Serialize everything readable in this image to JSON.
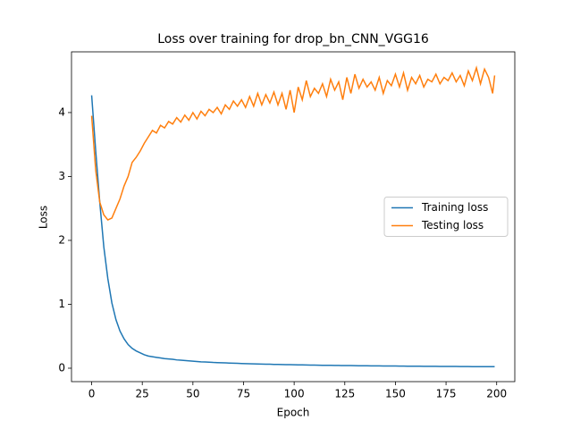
{
  "chart_data": {
    "type": "line",
    "title": "Loss over training for drop_bn_CNN_VGG16",
    "x_label": "Epoch",
    "y_label": "Loss",
    "x": [
      0,
      2,
      4,
      6,
      8,
      10,
      12,
      14,
      16,
      18,
      20,
      22,
      24,
      26,
      28,
      30,
      32,
      34,
      36,
      38,
      40,
      42,
      44,
      46,
      48,
      50,
      52,
      54,
      56,
      58,
      60,
      62,
      64,
      66,
      68,
      70,
      72,
      74,
      76,
      78,
      80,
      82,
      84,
      86,
      88,
      90,
      92,
      94,
      96,
      98,
      100,
      102,
      104,
      106,
      108,
      110,
      112,
      114,
      116,
      118,
      120,
      122,
      124,
      126,
      128,
      130,
      132,
      134,
      136,
      138,
      140,
      142,
      144,
      146,
      148,
      150,
      152,
      154,
      156,
      158,
      160,
      162,
      164,
      166,
      168,
      170,
      172,
      174,
      176,
      178,
      180,
      182,
      184,
      186,
      188,
      190,
      192,
      194,
      196,
      198,
      199
    ],
    "series": [
      {
        "name": "Training loss",
        "color": "#1f77b4",
        "values": [
          4.27,
          3.4,
          2.6,
          1.9,
          1.4,
          1.02,
          0.76,
          0.58,
          0.46,
          0.37,
          0.31,
          0.27,
          0.24,
          0.21,
          0.19,
          0.18,
          0.17,
          0.16,
          0.15,
          0.145,
          0.14,
          0.13,
          0.125,
          0.12,
          0.115,
          0.11,
          0.105,
          0.1,
          0.097,
          0.094,
          0.09,
          0.088,
          0.085,
          0.083,
          0.08,
          0.078,
          0.076,
          0.074,
          0.072,
          0.07,
          0.068,
          0.066,
          0.065,
          0.063,
          0.062,
          0.06,
          0.059,
          0.058,
          0.056,
          0.055,
          0.054,
          0.053,
          0.052,
          0.05,
          0.049,
          0.048,
          0.047,
          0.046,
          0.045,
          0.045,
          0.044,
          0.043,
          0.042,
          0.041,
          0.041,
          0.04,
          0.039,
          0.038,
          0.038,
          0.037,
          0.036,
          0.036,
          0.035,
          0.035,
          0.034,
          0.034,
          0.033,
          0.033,
          0.032,
          0.032,
          0.031,
          0.031,
          0.03,
          0.03,
          0.029,
          0.029,
          0.028,
          0.028,
          0.028,
          0.027,
          0.027,
          0.026,
          0.026,
          0.026,
          0.025,
          0.025,
          0.025,
          0.024,
          0.024,
          0.024,
          0.024
        ]
      },
      {
        "name": "Testing loss",
        "color": "#ff7f0e",
        "values": [
          3.95,
          3.1,
          2.6,
          2.4,
          2.32,
          2.35,
          2.5,
          2.65,
          2.85,
          3.0,
          3.22,
          3.3,
          3.4,
          3.52,
          3.62,
          3.72,
          3.68,
          3.8,
          3.76,
          3.86,
          3.82,
          3.92,
          3.85,
          3.96,
          3.88,
          4.0,
          3.9,
          4.02,
          3.95,
          4.05,
          4.0,
          4.08,
          3.98,
          4.12,
          4.05,
          4.18,
          4.1,
          4.2,
          4.08,
          4.25,
          4.1,
          4.3,
          4.12,
          4.28,
          4.15,
          4.32,
          4.12,
          4.3,
          4.05,
          4.35,
          4.0,
          4.4,
          4.2,
          4.5,
          4.25,
          4.38,
          4.3,
          4.45,
          4.25,
          4.52,
          4.35,
          4.48,
          4.2,
          4.55,
          4.3,
          4.6,
          4.38,
          4.52,
          4.4,
          4.48,
          4.35,
          4.55,
          4.3,
          4.5,
          4.42,
          4.6,
          4.4,
          4.62,
          4.35,
          4.55,
          4.45,
          4.58,
          4.4,
          4.52,
          4.48,
          4.6,
          4.45,
          4.55,
          4.5,
          4.62,
          4.48,
          4.58,
          4.42,
          4.65,
          4.5,
          4.7,
          4.45,
          4.68,
          4.55,
          4.3,
          4.58
        ]
      }
    ],
    "xlim": [
      -9.95,
      208.95
    ],
    "ylim": [
      -0.21,
      4.95
    ],
    "xticks": [
      0,
      25,
      50,
      75,
      100,
      125,
      150,
      175,
      200
    ],
    "yticks": [
      0,
      1,
      2,
      3,
      4
    ],
    "legend": "center right"
  }
}
